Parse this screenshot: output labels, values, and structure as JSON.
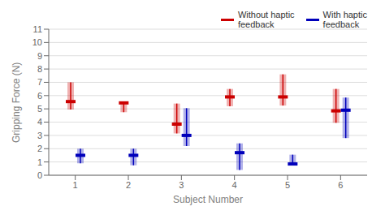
{
  "chart_data": {
    "type": "range",
    "xlabel": "Subject Number",
    "ylabel": "Gripping Force (N)",
    "categories": [
      "1",
      "2",
      "3",
      "4",
      "5",
      "6"
    ],
    "ylim": [
      0,
      11
    ],
    "yticks": [
      0,
      1,
      2,
      3,
      4,
      5,
      6,
      7,
      8,
      9,
      10,
      11
    ],
    "grid": true,
    "legend": "upper right",
    "series": [
      {
        "name": "Without haptic\nfeedback",
        "color": "#cc0000",
        "values": [
          5.55,
          5.45,
          3.85,
          5.9,
          5.9,
          4.85
        ],
        "min": [
          4.95,
          4.75,
          3.15,
          5.2,
          5.25,
          3.95
        ],
        "max": [
          7.0,
          5.55,
          5.4,
          6.5,
          7.6,
          6.5
        ]
      },
      {
        "name": "With haptic\nfeedback",
        "color": "#0000bb",
        "values": [
          1.5,
          1.5,
          3.0,
          1.7,
          0.85,
          4.9
        ],
        "min": [
          0.9,
          0.75,
          2.2,
          0.4,
          0.75,
          2.8
        ],
        "max": [
          2.0,
          2.0,
          5.05,
          2.4,
          1.55,
          5.85
        ]
      }
    ]
  }
}
